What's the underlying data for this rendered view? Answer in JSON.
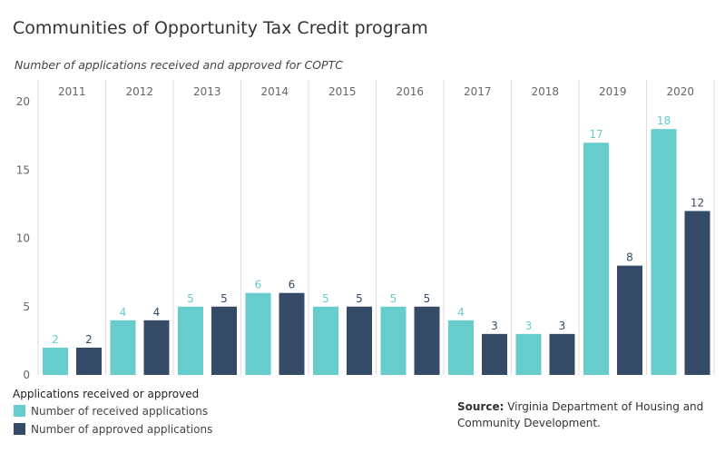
{
  "title": "Communities of Opportunity Tax Credit program",
  "subtitle": "Number of applications received and approved for COPTC",
  "legend": {
    "title": "Applications received or approved",
    "items": [
      "Number of received applications",
      "Number of approved applications"
    ]
  },
  "source": {
    "label": "Source:",
    "text": "Virginia Department of Housing and Community Development."
  },
  "colors": {
    "received": "#66cccc",
    "approved": "#344a66",
    "divider": "#dddddd",
    "axis_text": "#666666"
  },
  "chart_data": {
    "type": "bar",
    "categories": [
      "2011",
      "2012",
      "2013",
      "2014",
      "2015",
      "2016",
      "2017",
      "2018",
      "2019",
      "2020"
    ],
    "series": [
      {
        "name": "Number of received applications",
        "values": [
          2,
          4,
          5,
          6,
          5,
          5,
          4,
          3,
          17,
          18
        ]
      },
      {
        "name": "Number of approved applications",
        "values": [
          2,
          4,
          5,
          6,
          5,
          5,
          3,
          3,
          8,
          12
        ]
      }
    ],
    "yticks": [
      0,
      5,
      10,
      15,
      20
    ],
    "ylim": [
      0,
      21.6
    ],
    "xlabel": "",
    "ylabel": "",
    "grid": false,
    "legend_position": "bottom-left"
  }
}
